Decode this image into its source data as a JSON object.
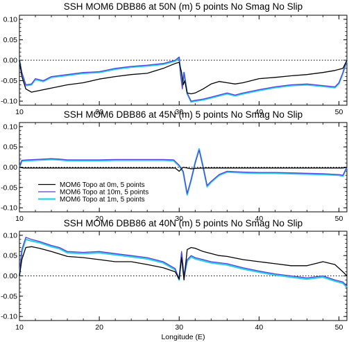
{
  "chart_data": [
    {
      "type": "line",
      "title": "SSH MOM6 DBB86 at 50N (m) 5 points No Smag No Slip",
      "xlabel": "",
      "ylabel": "",
      "xlim": [
        10,
        51
      ],
      "ylim": [
        -0.11,
        0.11
      ],
      "xticks": [
        "10",
        "20",
        "30",
        "40",
        "50"
      ],
      "yticks": [
        "0.10",
        "0.05",
        "0.00",
        "-0.05",
        "-0.10"
      ],
      "zero_line": "dotted",
      "series": [
        {
          "name": "MOM6 Topo at 0m, 5 points",
          "color": "#000000",
          "x": [
            10,
            10.3,
            10.8,
            11.5,
            12.5,
            14,
            16,
            18,
            20,
            22,
            24,
            26,
            28,
            29.5,
            30,
            30.3,
            30.5,
            30.7,
            31,
            31.5,
            32,
            33,
            34,
            35,
            36,
            37,
            38,
            40,
            42,
            44,
            46,
            48,
            49.5,
            50.5,
            51
          ],
          "y": [
            0.0,
            -0.04,
            -0.07,
            -0.078,
            -0.074,
            -0.068,
            -0.06,
            -0.055,
            -0.046,
            -0.04,
            -0.035,
            -0.032,
            -0.02,
            -0.008,
            -0.005,
            -0.03,
            -0.06,
            -0.05,
            -0.08,
            -0.082,
            -0.08,
            -0.07,
            -0.058,
            -0.052,
            -0.055,
            -0.058,
            -0.055,
            -0.045,
            -0.042,
            -0.038,
            -0.035,
            -0.03,
            -0.025,
            -0.02,
            0.0
          ]
        },
        {
          "name": "MOM6 Topo at 10m, 5 points",
          "color": "#5a3fd8",
          "x": [
            10,
            10.3,
            10.8,
            11.5,
            12,
            13,
            14,
            16,
            18,
            20,
            22,
            24,
            26,
            28,
            29.5,
            30,
            30.2,
            30.4,
            30.6,
            31,
            31.5,
            32,
            33,
            34,
            35,
            36,
            37,
            38,
            40,
            42,
            44,
            46,
            48,
            49.5,
            50,
            50.5,
            51
          ],
          "y": [
            0.0,
            -0.03,
            -0.06,
            -0.058,
            -0.045,
            -0.05,
            -0.04,
            -0.035,
            -0.03,
            -0.028,
            -0.02,
            -0.015,
            -0.012,
            -0.008,
            0.0,
            0.008,
            -0.04,
            -0.07,
            -0.03,
            -0.08,
            -0.1,
            -0.098,
            -0.095,
            -0.09,
            -0.085,
            -0.08,
            -0.085,
            -0.08,
            -0.072,
            -0.065,
            -0.06,
            -0.058,
            -0.062,
            -0.065,
            -0.055,
            -0.03,
            0.0
          ]
        },
        {
          "name": "MOM6 Topo at 1m, 5 points",
          "color": "#2ad0e6",
          "x": [
            10,
            10.3,
            10.8,
            11.5,
            12,
            13,
            14,
            16,
            18,
            20,
            22,
            24,
            26,
            28,
            29.5,
            30,
            30.2,
            30.4,
            30.6,
            31,
            31.5,
            32,
            33,
            34,
            35,
            36,
            37,
            38,
            40,
            42,
            44,
            46,
            48,
            49.5,
            50,
            50.5,
            51
          ],
          "y": [
            0.0,
            -0.032,
            -0.062,
            -0.06,
            -0.047,
            -0.052,
            -0.042,
            -0.037,
            -0.032,
            -0.03,
            -0.022,
            -0.017,
            -0.014,
            -0.01,
            -0.002,
            0.006,
            -0.035,
            -0.06,
            -0.03,
            -0.082,
            -0.102,
            -0.1,
            -0.097,
            -0.092,
            -0.087,
            -0.082,
            -0.087,
            -0.082,
            -0.074,
            -0.067,
            -0.062,
            -0.06,
            -0.064,
            -0.067,
            -0.057,
            -0.032,
            0.0
          ]
        }
      ]
    },
    {
      "type": "line",
      "title": "SSH MOM6 DBB86 at 45N (m) 5 points No Smag No Slip",
      "xlabel": "",
      "ylabel": "",
      "xlim": [
        10,
        51
      ],
      "ylim": [
        -0.11,
        0.11
      ],
      "xticks": [
        "10",
        "20",
        "30",
        "40",
        "50"
      ],
      "yticks": [
        "0.10",
        "0.05",
        "0.00",
        "-0.05",
        "-0.10"
      ],
      "zero_line": "dotted",
      "legend": {
        "placement": "lower-left"
      },
      "series": [
        {
          "name": "MOM6 Topo at 0m, 5 points",
          "color": "#000000",
          "x": [
            10,
            10.5,
            12,
            14,
            16,
            18,
            20,
            22,
            24,
            26,
            28,
            29.5,
            30,
            30.5,
            31,
            31.5,
            32,
            33,
            34,
            36,
            38,
            40,
            42,
            44,
            46,
            48,
            50,
            50.5,
            51
          ],
          "y": [
            0.0,
            -0.002,
            -0.002,
            -0.002,
            -0.002,
            -0.002,
            -0.002,
            -0.002,
            -0.002,
            -0.002,
            -0.002,
            -0.002,
            -0.01,
            0.0,
            -0.002,
            -0.004,
            -0.003,
            -0.002,
            -0.002,
            -0.002,
            -0.002,
            -0.002,
            -0.002,
            -0.002,
            -0.002,
            -0.002,
            -0.002,
            -0.002,
            0.0
          ]
        },
        {
          "name": "MOM6 Topo at 10m, 5 points",
          "color": "#5a3fd8",
          "x": [
            10,
            10.3,
            11,
            12,
            13,
            14,
            15,
            16,
            18,
            20,
            22,
            24,
            26,
            28,
            29.3,
            30,
            30.5,
            31,
            31.5,
            32,
            32.5,
            33,
            33.5,
            34,
            35,
            36,
            38,
            40,
            42,
            44,
            46,
            48,
            50,
            50.5,
            51
          ],
          "y": [
            0.0,
            0.017,
            0.018,
            0.019,
            0.02,
            0.021,
            0.02,
            0.018,
            0.018,
            0.018,
            0.019,
            0.019,
            0.019,
            0.019,
            0.018,
            0.005,
            -0.01,
            -0.065,
            -0.03,
            0.01,
            0.042,
            0.0,
            -0.045,
            -0.035,
            -0.018,
            -0.01,
            -0.012,
            -0.013,
            -0.013,
            -0.014,
            -0.015,
            -0.016,
            -0.018,
            -0.02,
            0.0
          ]
        },
        {
          "name": "MOM6 Topo at 1m, 5 points",
          "color": "#2ad0e6",
          "x": [
            10,
            10.3,
            11,
            12,
            13,
            14,
            15,
            16,
            18,
            20,
            22,
            24,
            26,
            28,
            29.3,
            30,
            30.5,
            31,
            31.5,
            32,
            32.5,
            33,
            33.5,
            34,
            35,
            36,
            38,
            40,
            42,
            44,
            46,
            48,
            50,
            50.5,
            51
          ],
          "y": [
            0.0,
            0.015,
            0.016,
            0.017,
            0.018,
            0.019,
            0.018,
            0.016,
            0.016,
            0.016,
            0.017,
            0.017,
            0.017,
            0.017,
            0.016,
            0.003,
            -0.012,
            -0.068,
            -0.032,
            0.012,
            0.045,
            0.0,
            -0.048,
            -0.037,
            -0.02,
            -0.012,
            -0.014,
            -0.015,
            -0.015,
            -0.016,
            -0.017,
            -0.018,
            -0.02,
            -0.022,
            0.0
          ]
        }
      ]
    },
    {
      "type": "line",
      "title": "SSH MOM6 DBB86 at 40N (m) 5 points No Smag No Slip",
      "xlabel": "Longitude (E)",
      "ylabel": "",
      "xlim": [
        10,
        51
      ],
      "ylim": [
        -0.11,
        0.11
      ],
      "xticks": [
        "10",
        "20",
        "30",
        "40",
        "50"
      ],
      "yticks": [
        "0.10",
        "0.05",
        "0.00",
        "-0.05",
        "-0.10"
      ],
      "zero_line": "dotted",
      "series": [
        {
          "name": "MOM6 Topo at 0m, 5 points",
          "color": "#000000",
          "x": [
            10,
            10.3,
            10.8,
            11.5,
            12.5,
            14,
            16,
            18,
            20,
            22,
            24,
            26,
            28,
            29.5,
            30,
            30.3,
            30.6,
            31,
            31.5,
            32,
            33,
            34,
            35,
            36,
            38,
            40,
            42,
            44,
            46,
            48,
            49.5,
            50.5,
            51
          ],
          "y": [
            0.0,
            0.04,
            0.07,
            0.072,
            0.068,
            0.06,
            0.048,
            0.045,
            0.04,
            0.035,
            0.035,
            0.028,
            0.02,
            0.01,
            -0.008,
            0.045,
            -0.01,
            0.065,
            0.07,
            0.068,
            0.06,
            0.055,
            0.05,
            0.048,
            0.04,
            0.035,
            0.03,
            0.025,
            0.025,
            0.035,
            0.028,
            0.01,
            0.0
          ]
        },
        {
          "name": "MOM6 Topo at 10m, 5 points",
          "color": "#5a3fd8",
          "x": [
            10,
            10.3,
            10.8,
            11.5,
            12.5,
            14,
            15,
            16,
            18,
            20,
            22,
            24,
            26,
            28,
            29.5,
            30,
            30.3,
            30.6,
            31,
            31.5,
            32,
            33,
            34,
            36,
            38,
            40,
            42,
            44,
            46,
            48,
            49.5,
            50.5,
            51
          ],
          "y": [
            0.0,
            0.065,
            0.095,
            0.09,
            0.085,
            0.075,
            0.07,
            0.06,
            0.058,
            0.06,
            0.055,
            0.05,
            0.045,
            0.035,
            0.018,
            -0.008,
            0.06,
            0.0,
            0.04,
            0.05,
            0.045,
            0.04,
            0.035,
            0.03,
            0.02,
            0.012,
            0.005,
            0.0,
            -0.005,
            0.0,
            -0.01,
            -0.015,
            -0.025
          ]
        },
        {
          "name": "MOM6 Topo at 1m, 5 points",
          "color": "#2ad0e6",
          "x": [
            10,
            10.3,
            10.8,
            11.5,
            12.5,
            14,
            15,
            16,
            18,
            20,
            22,
            24,
            26,
            28,
            29.5,
            30,
            30.3,
            30.6,
            31,
            31.5,
            32,
            33,
            34,
            36,
            38,
            40,
            42,
            44,
            46,
            48,
            49.5,
            50.5,
            51
          ],
          "y": [
            0.0,
            0.06,
            0.09,
            0.086,
            0.082,
            0.072,
            0.067,
            0.057,
            0.055,
            0.057,
            0.052,
            0.047,
            0.042,
            0.032,
            0.015,
            -0.01,
            0.055,
            -0.003,
            0.037,
            0.047,
            0.042,
            0.037,
            0.032,
            0.027,
            0.017,
            0.009,
            0.002,
            -0.003,
            -0.008,
            -0.003,
            -0.013,
            -0.018,
            -0.028
          ]
        }
      ]
    }
  ]
}
